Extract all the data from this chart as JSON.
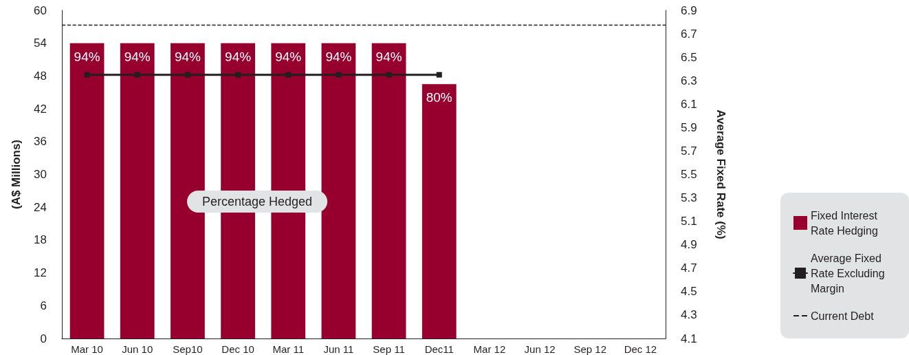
{
  "chart_data": {
    "type": "bar",
    "categories": [
      "Mar 10",
      "Jun 10",
      "Sep10",
      "Dec 10",
      "Mar 11",
      "Jun 11",
      "Sep 11",
      "Dec11",
      "Mar 12",
      "Jun 12",
      "Sep 12",
      "Dec 12"
    ],
    "series": [
      {
        "name": "Fixed Interest Rate Hedging",
        "color": "#97002e",
        "values": [
          54,
          54,
          54,
          54,
          54,
          54,
          54,
          46.5,
          null,
          null,
          null,
          null
        ]
      },
      {
        "name": "Average Fixed Rate Excluding Margin",
        "type": "line",
        "axis": "y2",
        "color": "#231f20",
        "values": [
          6.35,
          6.35,
          6.35,
          6.35,
          6.35,
          6.35,
          6.35,
          6.35,
          null,
          null,
          null,
          null
        ]
      }
    ],
    "ylabel": "(A$ Millions)",
    "y2label": "Average Fixed Rate (%)",
    "ylim": [
      0,
      60
    ],
    "yticks": [
      0,
      6,
      12,
      18,
      24,
      30,
      36,
      42,
      48,
      54,
      60
    ],
    "y2lim": [
      4.1,
      6.9
    ],
    "y2ticks": [
      4.1,
      4.3,
      4.5,
      4.7,
      4.9,
      5.1,
      5.3,
      5.5,
      5.7,
      5.9,
      6.1,
      6.3,
      6.5,
      6.7,
      6.9
    ],
    "ref_lines": [
      {
        "axis": "y",
        "value": 57.3,
        "label": "Current Debt",
        "color": "#231f20",
        "line_style": "dashed"
      }
    ],
    "annotations": [
      "Percentage Hedged",
      {
        "text": "94%",
        "x": "Mar 10",
        "y": 54
      },
      {
        "text": "94%",
        "x": "Jun 10",
        "y": 54
      },
      {
        "text": "94%",
        "x": "Sep10",
        "y": 54
      },
      {
        "text": "94%",
        "x": "Dec 10",
        "y": 54
      },
      {
        "text": "94%",
        "x": "Mar 11",
        "y": 54
      },
      {
        "text": "94%",
        "x": "Jun 11",
        "y": 54
      },
      {
        "text": "94%",
        "x": "Sep 11",
        "y": 54
      },
      {
        "text": "80%",
        "x": "Dec11",
        "y": 46.5
      }
    ],
    "marker": "square",
    "line_style": "solid",
    "grid": false,
    "legend": "bottom right"
  }
}
